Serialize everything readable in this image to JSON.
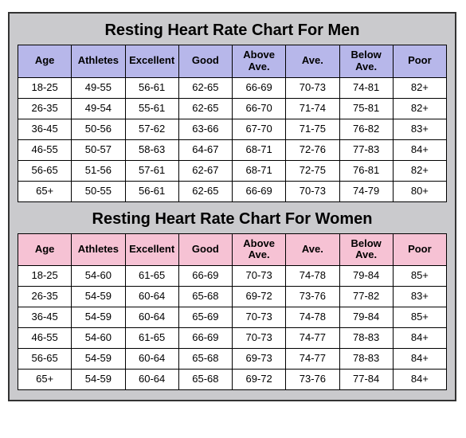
{
  "men": {
    "title": "Resting Heart Rate Chart For Men",
    "header_bg": "#b7b7ea",
    "columns": [
      "Age",
      "Athletes",
      "Excellent",
      "Good",
      "Above Ave.",
      "Ave.",
      "Below Ave.",
      "Poor"
    ],
    "rows": [
      [
        "18-25",
        "49-55",
        "56-61",
        "62-65",
        "66-69",
        "70-73",
        "74-81",
        "82+"
      ],
      [
        "26-35",
        "49-54",
        "55-61",
        "62-65",
        "66-70",
        "71-74",
        "75-81",
        "82+"
      ],
      [
        "36-45",
        "50-56",
        "57-62",
        "63-66",
        "67-70",
        "71-75",
        "76-82",
        "83+"
      ],
      [
        "46-55",
        "50-57",
        "58-63",
        "64-67",
        "68-71",
        "72-76",
        "77-83",
        "84+"
      ],
      [
        "56-65",
        "51-56",
        "57-61",
        "62-67",
        "68-71",
        "72-75",
        "76-81",
        "82+"
      ],
      [
        "65+",
        "50-55",
        "56-61",
        "62-65",
        "66-69",
        "70-73",
        "74-79",
        "80+"
      ]
    ]
  },
  "women": {
    "title": "Resting Heart Rate Chart For Women",
    "header_bg": "#f6c2d4",
    "columns": [
      "Age",
      "Athletes",
      "Excellent",
      "Good",
      "Above Ave.",
      "Ave.",
      "Below Ave.",
      "Poor"
    ],
    "rows": [
      [
        "18-25",
        "54-60",
        "61-65",
        "66-69",
        "70-73",
        "74-78",
        "79-84",
        "85+"
      ],
      [
        "26-35",
        "54-59",
        "60-64",
        "65-68",
        "69-72",
        "73-76",
        "77-82",
        "83+"
      ],
      [
        "36-45",
        "54-59",
        "60-64",
        "65-69",
        "70-73",
        "74-78",
        "79-84",
        "85+"
      ],
      [
        "46-55",
        "54-60",
        "61-65",
        "66-69",
        "70-73",
        "74-77",
        "78-83",
        "84+"
      ],
      [
        "56-65",
        "54-59",
        "60-64",
        "65-68",
        "69-73",
        "74-77",
        "78-83",
        "84+"
      ],
      [
        "65+",
        "54-59",
        "60-64",
        "65-68",
        "69-72",
        "73-76",
        "77-84",
        "84+"
      ]
    ]
  }
}
